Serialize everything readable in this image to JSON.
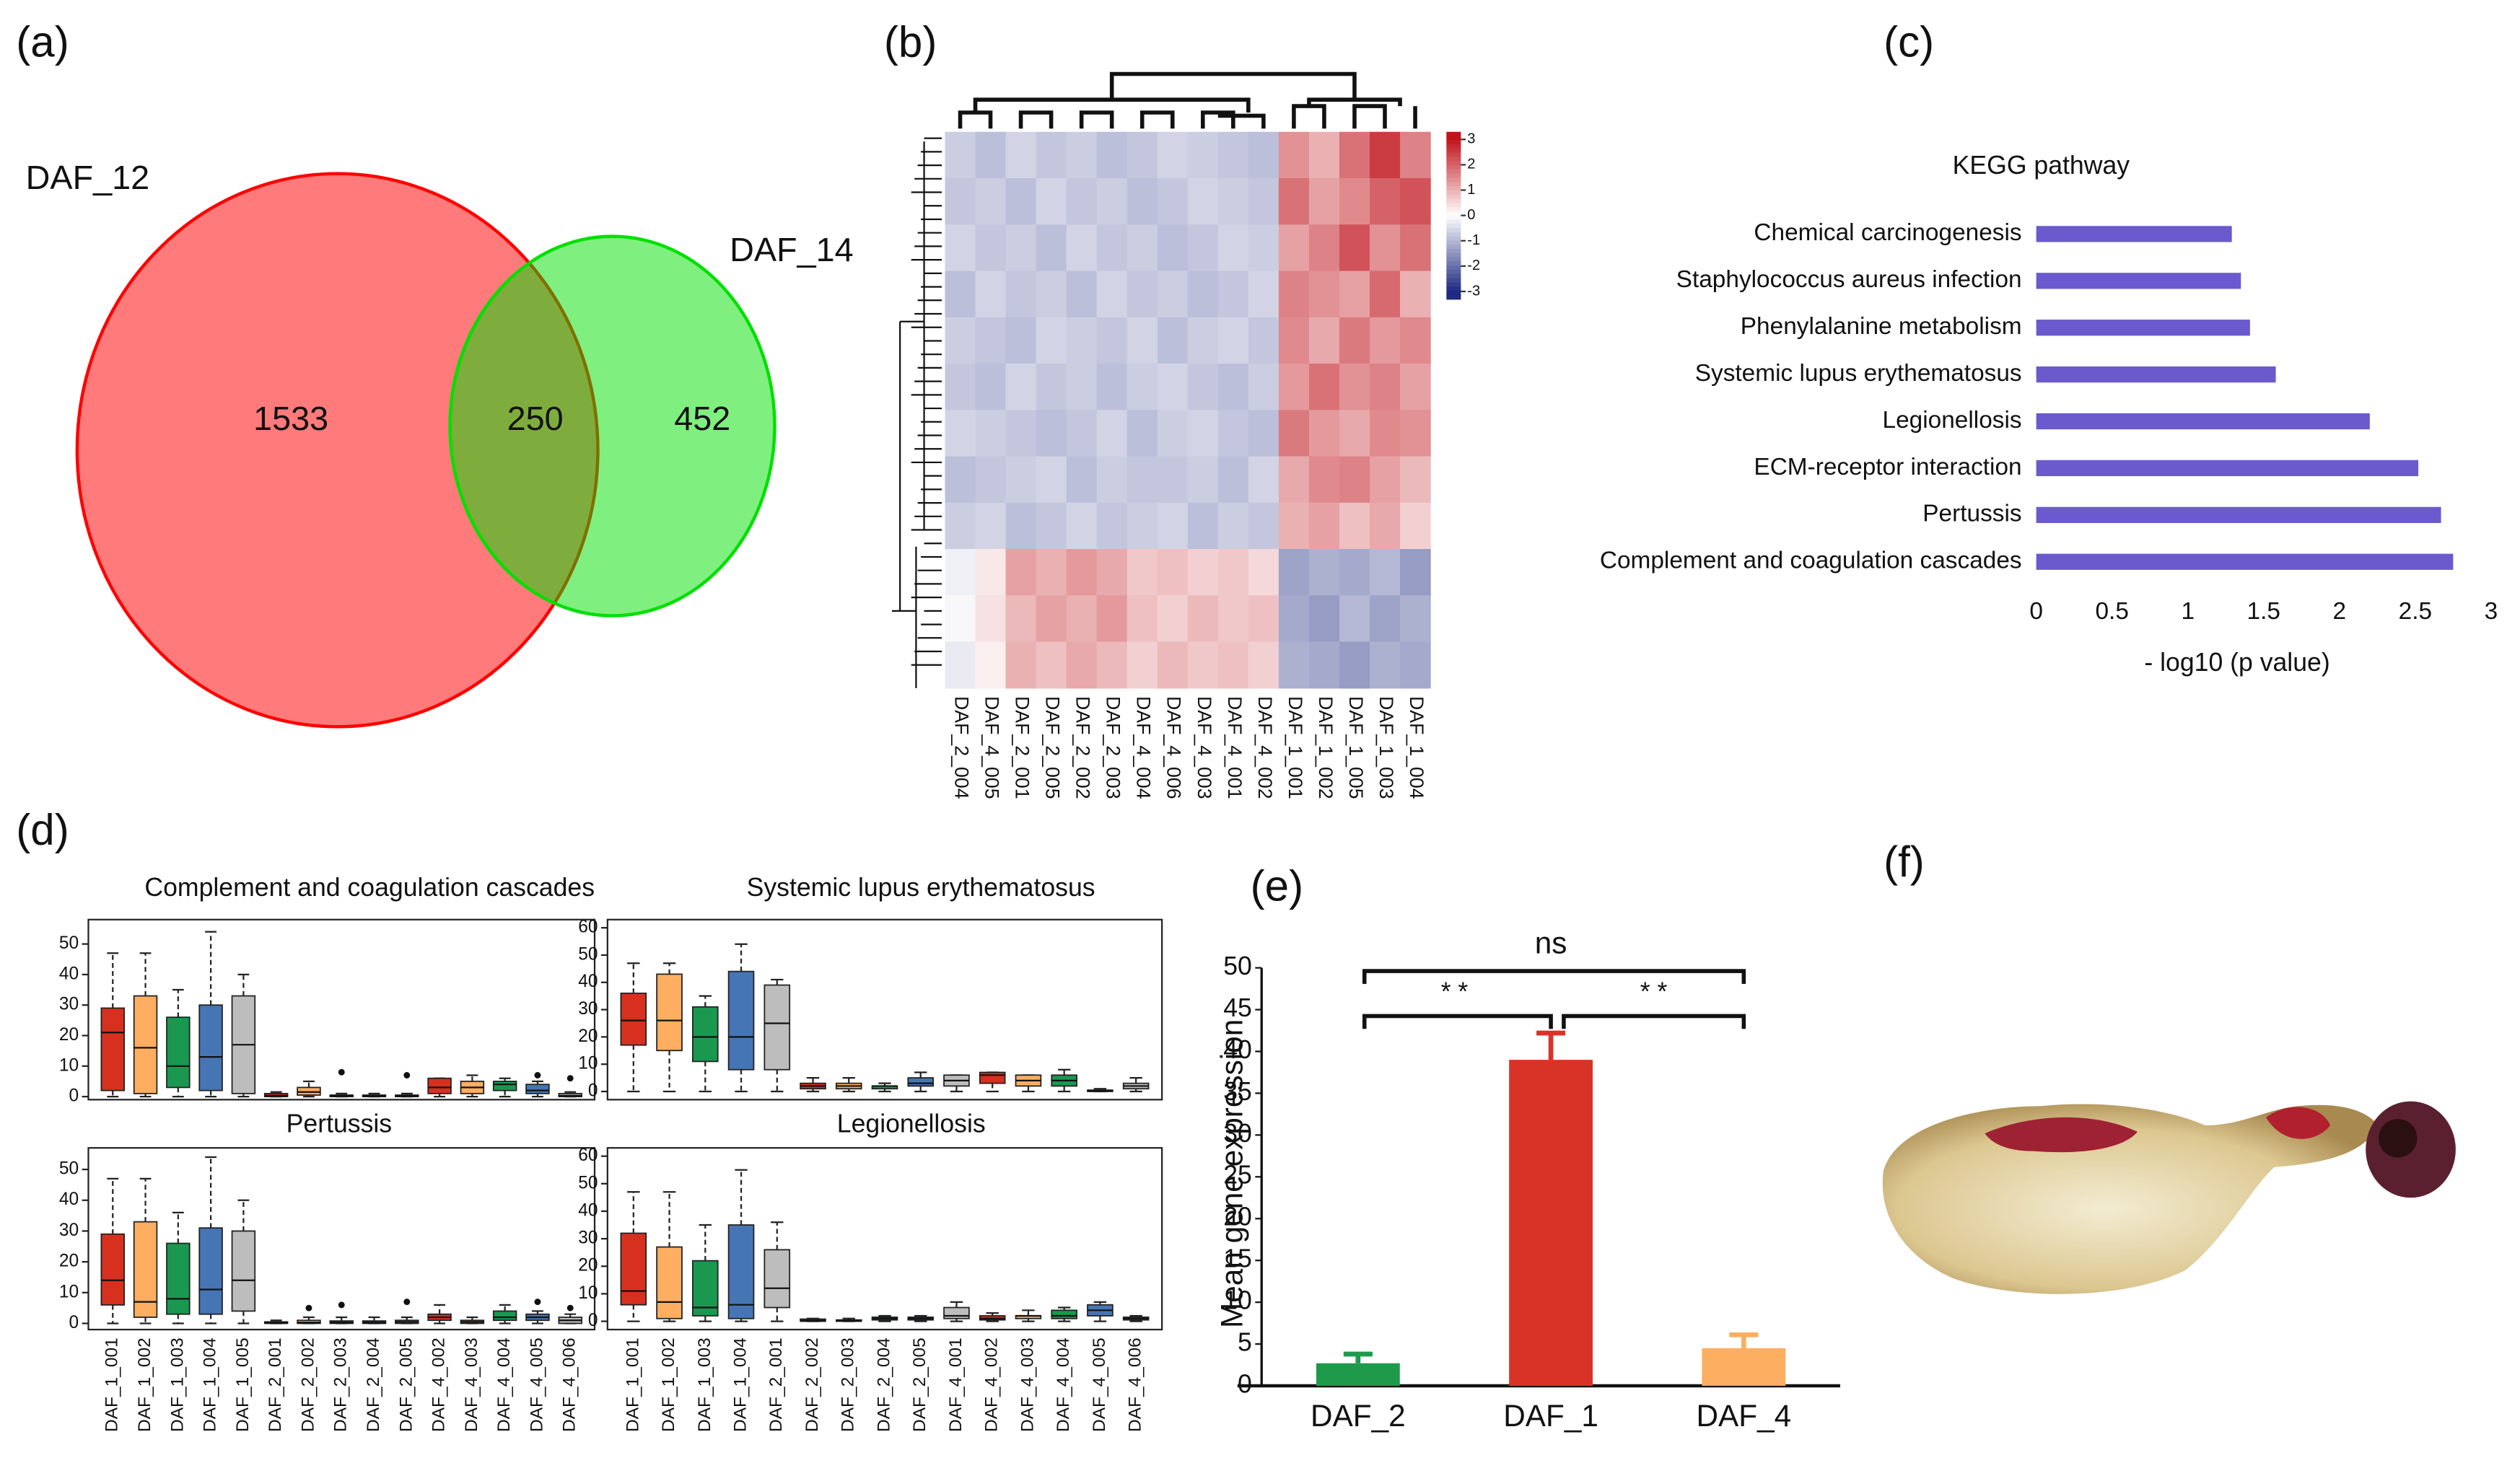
{
  "panel_labels": [
    "(a)",
    "(b)",
    "(c)",
    "(d)",
    "(e)",
    "(f)"
  ],
  "chart_data": [
    {
      "type": "venn",
      "sets": [
        {
          "name": "DAF_12",
          "color": "#ff0000",
          "value": 1533
        },
        {
          "name": "DAF_14",
          "color": "#00e000",
          "value": 452
        }
      ],
      "overlap": 250
    },
    {
      "type": "heatmap",
      "columns": [
        "DAF_2_004",
        "DAF_4_005",
        "DAF_2_001",
        "DAF_2_005",
        "DAF_2_002",
        "DAF_2_003",
        "DAF_4_004",
        "DAF_4_006",
        "DAF_4_003",
        "DAF_4_001",
        "DAF_4_002",
        "DAF_1_001",
        "DAF_1_002",
        "DAF_1_005",
        "DAF_1_003",
        "DAF_1_004"
      ],
      "values": [
        [
          -0.7,
          -0.9,
          -0.6,
          -0.8,
          -0.7,
          -0.9,
          -0.8,
          -0.6,
          -0.7,
          -0.8,
          -0.9,
          1.4,
          1.0,
          1.8,
          2.5,
          1.6
        ],
        [
          -0.8,
          -0.7,
          -0.9,
          -0.6,
          -0.8,
          -0.7,
          -0.9,
          -0.8,
          -0.6,
          -0.7,
          -0.8,
          1.8,
          1.2,
          1.5,
          2.0,
          2.2
        ],
        [
          -0.6,
          -0.8,
          -0.7,
          -0.9,
          -0.6,
          -0.8,
          -0.7,
          -0.9,
          -0.8,
          -0.6,
          -0.7,
          1.2,
          1.6,
          2.2,
          1.4,
          1.8
        ],
        [
          -0.9,
          -0.6,
          -0.8,
          -0.7,
          -0.9,
          -0.6,
          -0.8,
          -0.7,
          -0.9,
          -0.8,
          -0.6,
          1.6,
          1.4,
          1.2,
          1.9,
          1.0
        ],
        [
          -0.7,
          -0.8,
          -0.9,
          -0.6,
          -0.7,
          -0.8,
          -0.6,
          -0.9,
          -0.7,
          -0.6,
          -0.8,
          1.5,
          1.1,
          1.7,
          1.3,
          1.5
        ],
        [
          -0.8,
          -0.9,
          -0.6,
          -0.8,
          -0.7,
          -0.9,
          -0.7,
          -0.6,
          -0.8,
          -0.9,
          -0.7,
          1.3,
          1.8,
          1.4,
          1.6,
          1.2
        ],
        [
          -0.6,
          -0.7,
          -0.8,
          -0.9,
          -0.8,
          -0.6,
          -0.9,
          -0.7,
          -0.6,
          -0.8,
          -0.9,
          1.7,
          1.3,
          1.1,
          1.5,
          1.4
        ],
        [
          -0.9,
          -0.8,
          -0.7,
          -0.6,
          -0.9,
          -0.7,
          -0.8,
          -0.8,
          -0.7,
          -0.9,
          -0.6,
          1.1,
          1.5,
          1.6,
          1.2,
          0.9
        ],
        [
          -0.7,
          -0.6,
          -0.9,
          -0.8,
          -0.6,
          -0.8,
          -0.7,
          -0.6,
          -0.9,
          -0.7,
          -0.8,
          1.0,
          1.2,
          0.8,
          1.1,
          0.6
        ],
        [
          -0.2,
          0.3,
          1.2,
          1.0,
          1.3,
          1.1,
          0.7,
          0.8,
          0.6,
          0.7,
          0.5,
          -1.3,
          -1.1,
          -1.2,
          -1.0,
          -1.4
        ],
        [
          -0.1,
          0.4,
          0.9,
          1.2,
          1.0,
          1.3,
          0.8,
          0.6,
          0.9,
          0.7,
          0.8,
          -1.2,
          -1.4,
          -1.0,
          -1.3,
          -1.1
        ],
        [
          -0.3,
          0.2,
          1.0,
          0.8,
          1.1,
          0.9,
          0.6,
          0.9,
          0.7,
          0.8,
          0.6,
          -1.1,
          -1.2,
          -1.4,
          -1.1,
          -1.2
        ]
      ],
      "clim": [
        -3.3,
        3.3
      ],
      "cticks": [
        3,
        2,
        1,
        0,
        -1,
        -2,
        -3
      ],
      "colors": [
        "#1f2a80",
        "#ffffff",
        "#c0141c"
      ]
    },
    {
      "type": "hbar",
      "title": "KEGG pathway",
      "categories": [
        "Chemical carcinogenesis",
        "Staphylococcus aureus infection",
        "Phenylalanine metabolism",
        "Systemic lupus erythematosus",
        "Legionellosis",
        "ECM-receptor interaction",
        "Pertussis",
        "Complement and coagulation cascades"
      ],
      "values": [
        1.29,
        1.35,
        1.41,
        1.58,
        2.2,
        2.52,
        2.67,
        2.75
      ],
      "color": "#6a5acd",
      "xlim": [
        0,
        3
      ],
      "xticks": [
        0,
        0.5,
        1,
        1.5,
        2,
        2.5,
        3
      ],
      "xlabel": "- log10 (p value)"
    },
    {
      "type": "box",
      "title": "Complement and coagulation cascades",
      "ylim": [
        -1,
        58
      ],
      "yticks": [
        0,
        10,
        20,
        30,
        40,
        50
      ],
      "colors": [
        "#d7301f",
        "#fdae61",
        "#1a9850",
        "#4575b4",
        "#bdbdbd"
      ],
      "boxes": [
        [
          0,
          2,
          21,
          29,
          47
        ],
        [
          0,
          1,
          16,
          33,
          47
        ],
        [
          0,
          3,
          10,
          26,
          35
        ],
        [
          0,
          2,
          13,
          30,
          54
        ],
        [
          0,
          1,
          17,
          33,
          40
        ],
        [
          0,
          0,
          0.3,
          1,
          1.5
        ],
        [
          0,
          0.5,
          1.5,
          3,
          5
        ],
        [
          0,
          0,
          0.3,
          0.5,
          1
        ],
        [
          0,
          0,
          0.2,
          0.5,
          1
        ],
        [
          0,
          0,
          0.2,
          0.5,
          1
        ],
        [
          0,
          1,
          3,
          6,
          6
        ],
        [
          0,
          1,
          3,
          5,
          7
        ],
        [
          0,
          2,
          4,
          5,
          6
        ],
        [
          0,
          1,
          2,
          4,
          5
        ],
        [
          0,
          0,
          0.3,
          1,
          1.5
        ]
      ],
      "outliers": [
        [],
        [],
        [],
        [],
        [],
        [],
        [],
        [
          8
        ],
        [],
        [
          7
        ],
        [],
        [],
        [],
        [
          7
        ],
        [
          6
        ]
      ]
    },
    {
      "type": "box",
      "title": "Systemic lupus erythematosus",
      "ylim": [
        -3,
        63
      ],
      "yticks": [
        0,
        10,
        20,
        30,
        40,
        50,
        60
      ],
      "colors": [
        "#d7301f",
        "#fdae61",
        "#1a9850",
        "#4575b4",
        "#bdbdbd"
      ],
      "boxes": [
        [
          0,
          17,
          26,
          36,
          47
        ],
        [
          0,
          15,
          26,
          43,
          47
        ],
        [
          0,
          11,
          20,
          31,
          35
        ],
        [
          0,
          8,
          20,
          44,
          54
        ],
        [
          0,
          8,
          25,
          39,
          41
        ],
        [
          0,
          1,
          2,
          3,
          5
        ],
        [
          0,
          1,
          2,
          3,
          5
        ],
        [
          0,
          1,
          2,
          2,
          3
        ],
        [
          0,
          2,
          3,
          5,
          7
        ],
        [
          0,
          2,
          4,
          6,
          6
        ],
        [
          0,
          3,
          6,
          7,
          7
        ],
        [
          0,
          2,
          4,
          6,
          6
        ],
        [
          0,
          2,
          4,
          6,
          8
        ],
        [
          0,
          0,
          0.3,
          0.5,
          1
        ],
        [
          0,
          1,
          2,
          3,
          5
        ]
      ],
      "outliers": [
        [],
        [],
        [],
        [],
        [],
        [],
        [],
        [],
        [],
        [],
        [],
        [],
        [],
        [],
        []
      ]
    },
    {
      "type": "box",
      "title": "Pertussis",
      "ylim": [
        -2,
        57
      ],
      "yticks": [
        0,
        10,
        20,
        30,
        40,
        50
      ],
      "colors": [
        "#d7301f",
        "#fdae61",
        "#1a9850",
        "#4575b4",
        "#bdbdbd"
      ],
      "categories": [
        "DAF_1_001",
        "DAF_1_002",
        "DAF_1_003",
        "DAF_1_004",
        "DAF_1_005",
        "DAF_2_001",
        "DAF_2_002",
        "DAF_2_003",
        "DAF_2_004",
        "DAF_2_005",
        "DAF_4_002",
        "DAF_4_003",
        "DAF_4_004",
        "DAF_4_005",
        "DAF_4_006"
      ],
      "boxes": [
        [
          0,
          6,
          14,
          29,
          47
        ],
        [
          0,
          2,
          7,
          33,
          47
        ],
        [
          0,
          3,
          8,
          26,
          36
        ],
        [
          0,
          3,
          11,
          31,
          54
        ],
        [
          0,
          4,
          14,
          30,
          40
        ],
        [
          0,
          0,
          0.2,
          0.5,
          1
        ],
        [
          0,
          0,
          0.3,
          1,
          2
        ],
        [
          0,
          0,
          0.3,
          0.8,
          2
        ],
        [
          0,
          0,
          0.3,
          0.8,
          2
        ],
        [
          0,
          0,
          0.5,
          1,
          2
        ],
        [
          0,
          1,
          2,
          3,
          6
        ],
        [
          0,
          0,
          0.5,
          1,
          2
        ],
        [
          0,
          1,
          2,
          4,
          6
        ],
        [
          0,
          1,
          2,
          3,
          4
        ],
        [
          0,
          0,
          1,
          2,
          3
        ]
      ],
      "outliers": [
        [],
        [],
        [],
        [],
        [],
        [],
        [
          5
        ],
        [
          6
        ],
        [],
        [
          7
        ],
        [],
        [],
        [],
        [
          7
        ],
        [
          5
        ]
      ]
    },
    {
      "type": "box",
      "title": "Legionellosis",
      "ylim": [
        -3,
        63
      ],
      "yticks": [
        0,
        10,
        20,
        30,
        40,
        50,
        60
      ],
      "colors": [
        "#d7301f",
        "#fdae61",
        "#1a9850",
        "#4575b4",
        "#bdbdbd"
      ],
      "categories": [
        "DAF_1_001",
        "DAF_1_002",
        "DAF_1_003",
        "DAF_1_004",
        "DAF_2_001",
        "DAF_2_002",
        "DAF_2_003",
        "DAF_2_004",
        "DAF_2_005",
        "DAF_4_001",
        "DAF_4_002",
        "DAF_4_003",
        "DAF_4_004",
        "DAF_4_005",
        "DAF_4_006"
      ],
      "boxes": [
        [
          0,
          6,
          11,
          32,
          47
        ],
        [
          0,
          1,
          7,
          27,
          47
        ],
        [
          0,
          2,
          5,
          22,
          35
        ],
        [
          0,
          1,
          6,
          35,
          55
        ],
        [
          0,
          5,
          12,
          26,
          36
        ],
        [
          0,
          0,
          0.3,
          0.8,
          1
        ],
        [
          0,
          0,
          0.3,
          0.5,
          1
        ],
        [
          0,
          0.5,
          1,
          1.5,
          2
        ],
        [
          0,
          0.5,
          1,
          1.5,
          2
        ],
        [
          0,
          1,
          2,
          5,
          7
        ],
        [
          0,
          0.5,
          1,
          2,
          3
        ],
        [
          0,
          1,
          2,
          2,
          4
        ],
        [
          0,
          1,
          2,
          4,
          5
        ],
        [
          0,
          2,
          4,
          6,
          7
        ],
        [
          0,
          0.5,
          1,
          1.5,
          2
        ]
      ],
      "outliers": [
        [],
        [],
        [],
        [],
        [],
        [],
        [],
        [],
        [],
        [],
        [],
        [],
        [],
        [],
        []
      ]
    },
    {
      "type": "bar",
      "ylabel": "Mean gene expression",
      "categories": [
        "DAF_2",
        "DAF_1",
        "DAF_4"
      ],
      "values": [
        2.7,
        39,
        4.5
      ],
      "errors": [
        1.1,
        3.2,
        1.6
      ],
      "colors": [
        "#1e9a4a",
        "#d93328",
        "#fdae61"
      ],
      "ylim": [
        0,
        50
      ],
      "yticks": [
        0,
        5,
        10,
        15,
        20,
        25,
        30,
        35,
        40,
        45,
        50
      ],
      "annotations": [
        "ns",
        "* *",
        "* *"
      ]
    }
  ]
}
